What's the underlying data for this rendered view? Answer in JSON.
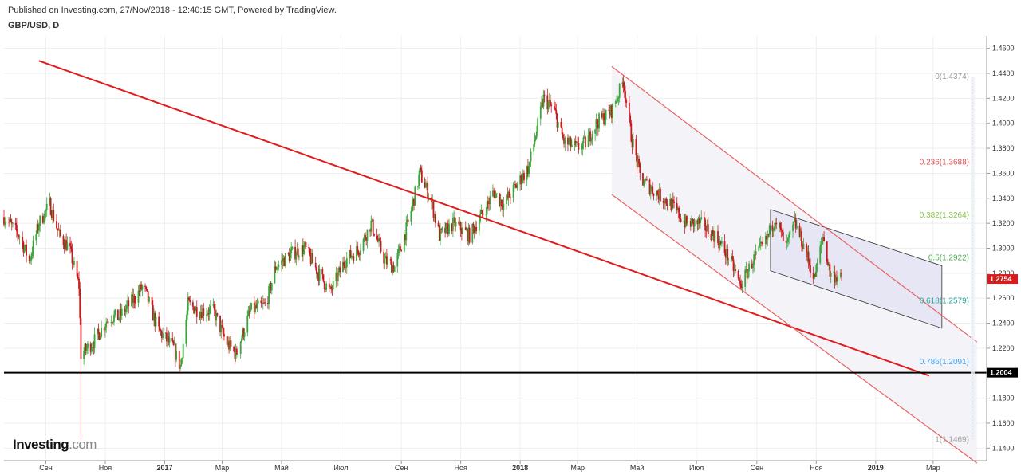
{
  "header": {
    "published": "Published on Investing.com, 27/Nov/2018 - 12:40:15 GMT, Powered by TradingView.",
    "symbol": "GBP/USD, D"
  },
  "logo": {
    "brand": "Investing",
    "suffix": ".com"
  },
  "colors": {
    "up_candle": "#3aa53a",
    "down_candle": "#c8191e",
    "trendline": "#e01c1c",
    "channel": "#e86363",
    "support": "#000000",
    "price_label_bg": "#d81b1b"
  },
  "chart_data": {
    "type": "candlestick",
    "title": "GBP/USD, D",
    "ylim": [
      1.13,
      1.47
    ],
    "y_ticks": [
      "1.4600",
      "1.4400",
      "1.4200",
      "1.4000",
      "1.3800",
      "1.3600",
      "1.3400",
      "1.3200",
      "1.3000",
      "1.2800",
      "1.2600",
      "1.2400",
      "1.2200",
      "1.1800",
      "1.1600",
      "1.1400"
    ],
    "x_ticks": [
      "Сен",
      "Ноя",
      "2017",
      "Мар",
      "Май",
      "Июл",
      "Сен",
      "Ноя",
      "2018",
      "Мар",
      "Май",
      "Июл",
      "Сен",
      "Ноя",
      "2019",
      "Мар"
    ],
    "x_tick_dates": [
      "2016-09-01",
      "2016-11-01",
      "2017-01-01",
      "2017-03-01",
      "2017-05-01",
      "2017-07-01",
      "2017-09-01",
      "2017-11-01",
      "2018-01-01",
      "2018-03-01",
      "2018-05-01",
      "2018-07-01",
      "2018-09-01",
      "2018-11-01",
      "2019-01-01",
      "2019-03-01"
    ],
    "x_range": [
      "2016-07-20",
      "2019-04-25"
    ],
    "price_path": [
      {
        "date": "2016-07-20",
        "close": 1.325
      },
      {
        "date": "2016-08-05",
        "close": 1.31
      },
      {
        "date": "2016-08-15",
        "close": 1.29
      },
      {
        "date": "2016-08-25",
        "close": 1.32
      },
      {
        "date": "2016-09-05",
        "close": 1.335
      },
      {
        "date": "2016-09-15",
        "close": 1.31
      },
      {
        "date": "2016-09-25",
        "close": 1.3
      },
      {
        "date": "2016-10-05",
        "close": 1.27
      },
      {
        "date": "2016-10-07",
        "close": 1.215
      },
      {
        "date": "2016-10-20",
        "close": 1.225
      },
      {
        "date": "2016-11-05",
        "close": 1.245
      },
      {
        "date": "2016-11-15",
        "close": 1.245
      },
      {
        "date": "2016-12-01",
        "close": 1.26
      },
      {
        "date": "2016-12-10",
        "close": 1.27
      },
      {
        "date": "2016-12-25",
        "close": 1.235
      },
      {
        "date": "2017-01-10",
        "close": 1.22
      },
      {
        "date": "2017-01-17",
        "close": 1.205
      },
      {
        "date": "2017-01-25",
        "close": 1.255
      },
      {
        "date": "2017-02-05",
        "close": 1.25
      },
      {
        "date": "2017-02-20",
        "close": 1.25
      },
      {
        "date": "2017-03-05",
        "close": 1.225
      },
      {
        "date": "2017-03-15",
        "close": 1.215
      },
      {
        "date": "2017-03-30",
        "close": 1.25
      },
      {
        "date": "2017-04-15",
        "close": 1.255
      },
      {
        "date": "2017-04-25",
        "close": 1.285
      },
      {
        "date": "2017-05-10",
        "close": 1.295
      },
      {
        "date": "2017-05-25",
        "close": 1.3
      },
      {
        "date": "2017-06-08",
        "close": 1.28
      },
      {
        "date": "2017-06-20",
        "close": 1.265
      },
      {
        "date": "2017-07-05",
        "close": 1.29
      },
      {
        "date": "2017-07-20",
        "close": 1.3
      },
      {
        "date": "2017-08-01",
        "close": 1.32
      },
      {
        "date": "2017-08-15",
        "close": 1.29
      },
      {
        "date": "2017-08-25",
        "close": 1.285
      },
      {
        "date": "2017-09-08",
        "close": 1.32
      },
      {
        "date": "2017-09-20",
        "close": 1.36
      },
      {
        "date": "2017-10-01",
        "close": 1.34
      },
      {
        "date": "2017-10-10",
        "close": 1.31
      },
      {
        "date": "2017-10-25",
        "close": 1.32
      },
      {
        "date": "2017-11-10",
        "close": 1.31
      },
      {
        "date": "2017-11-25",
        "close": 1.33
      },
      {
        "date": "2017-12-05",
        "close": 1.345
      },
      {
        "date": "2017-12-15",
        "close": 1.335
      },
      {
        "date": "2017-12-28",
        "close": 1.35
      },
      {
        "date": "2018-01-10",
        "close": 1.365
      },
      {
        "date": "2018-01-25",
        "close": 1.42
      },
      {
        "date": "2018-02-05",
        "close": 1.41
      },
      {
        "date": "2018-02-15",
        "close": 1.385
      },
      {
        "date": "2018-03-01",
        "close": 1.38
      },
      {
        "date": "2018-03-10",
        "close": 1.385
      },
      {
        "date": "2018-03-20",
        "close": 1.4
      },
      {
        "date": "2018-04-05",
        "close": 1.41
      },
      {
        "date": "2018-04-17",
        "close": 1.434
      },
      {
        "date": "2018-04-25",
        "close": 1.39
      },
      {
        "date": "2018-05-05",
        "close": 1.355
      },
      {
        "date": "2018-05-20",
        "close": 1.345
      },
      {
        "date": "2018-06-05",
        "close": 1.335
      },
      {
        "date": "2018-06-20",
        "close": 1.32
      },
      {
        "date": "2018-07-05",
        "close": 1.32
      },
      {
        "date": "2018-07-20",
        "close": 1.31
      },
      {
        "date": "2018-08-05",
        "close": 1.29
      },
      {
        "date": "2018-08-15",
        "close": 1.27
      },
      {
        "date": "2018-08-28",
        "close": 1.29
      },
      {
        "date": "2018-09-10",
        "close": 1.305
      },
      {
        "date": "2018-09-20",
        "close": 1.325
      },
      {
        "date": "2018-10-01",
        "close": 1.3
      },
      {
        "date": "2018-10-10",
        "close": 1.32
      },
      {
        "date": "2018-10-20",
        "close": 1.3
      },
      {
        "date": "2018-10-30",
        "close": 1.275
      },
      {
        "date": "2018-11-08",
        "close": 1.31
      },
      {
        "date": "2018-11-15",
        "close": 1.28
      },
      {
        "date": "2018-11-27",
        "close": 1.2754
      }
    ],
    "annotations": {
      "last_price": "1.2754",
      "support_level": {
        "value": 1.2004,
        "label": "1.2004"
      },
      "fibonacci": [
        {
          "label": "0(1.4374)",
          "value": 1.4374,
          "color": "#9e9e9e"
        },
        {
          "label": "0.236(1.3688)",
          "value": 1.3688,
          "color": "#e05252"
        },
        {
          "label": "0.382(1.3264)",
          "value": 1.3264,
          "color": "#8bc34a"
        },
        {
          "label": "0.5(1.2922)",
          "value": 1.2922,
          "color": "#4caf50"
        },
        {
          "label": "0.618(1.2579)",
          "value": 1.2579,
          "color": "#26a69a"
        },
        {
          "label": "0.786(1.2091)",
          "value": 1.2091,
          "color": "#42a5f5"
        },
        {
          "label": "1(1.1469)",
          "value": 1.1469,
          "color": "#9e9e9e"
        }
      ],
      "long_trendline": [
        {
          "date": "2016-08-25",
          "value": 1.45
        },
        {
          "date": "2019-02-25",
          "value": 1.198
        }
      ],
      "channel_upper": [
        {
          "date": "2018-04-05",
          "value": 1.4455
        },
        {
          "date": "2019-04-15",
          "value": 1.225
        }
      ],
      "channel_lower": [
        {
          "date": "2018-04-05",
          "value": 1.343
        },
        {
          "date": "2019-04-15",
          "value": 1.128
        }
      ],
      "small_channel_upper": [
        {
          "date": "2018-09-15",
          "value": 1.331
        },
        {
          "date": "2019-03-10",
          "value": 1.286
        }
      ],
      "small_channel_lower": [
        {
          "date": "2018-09-15",
          "value": 1.282
        },
        {
          "date": "2019-03-10",
          "value": 1.236
        }
      ]
    }
  }
}
